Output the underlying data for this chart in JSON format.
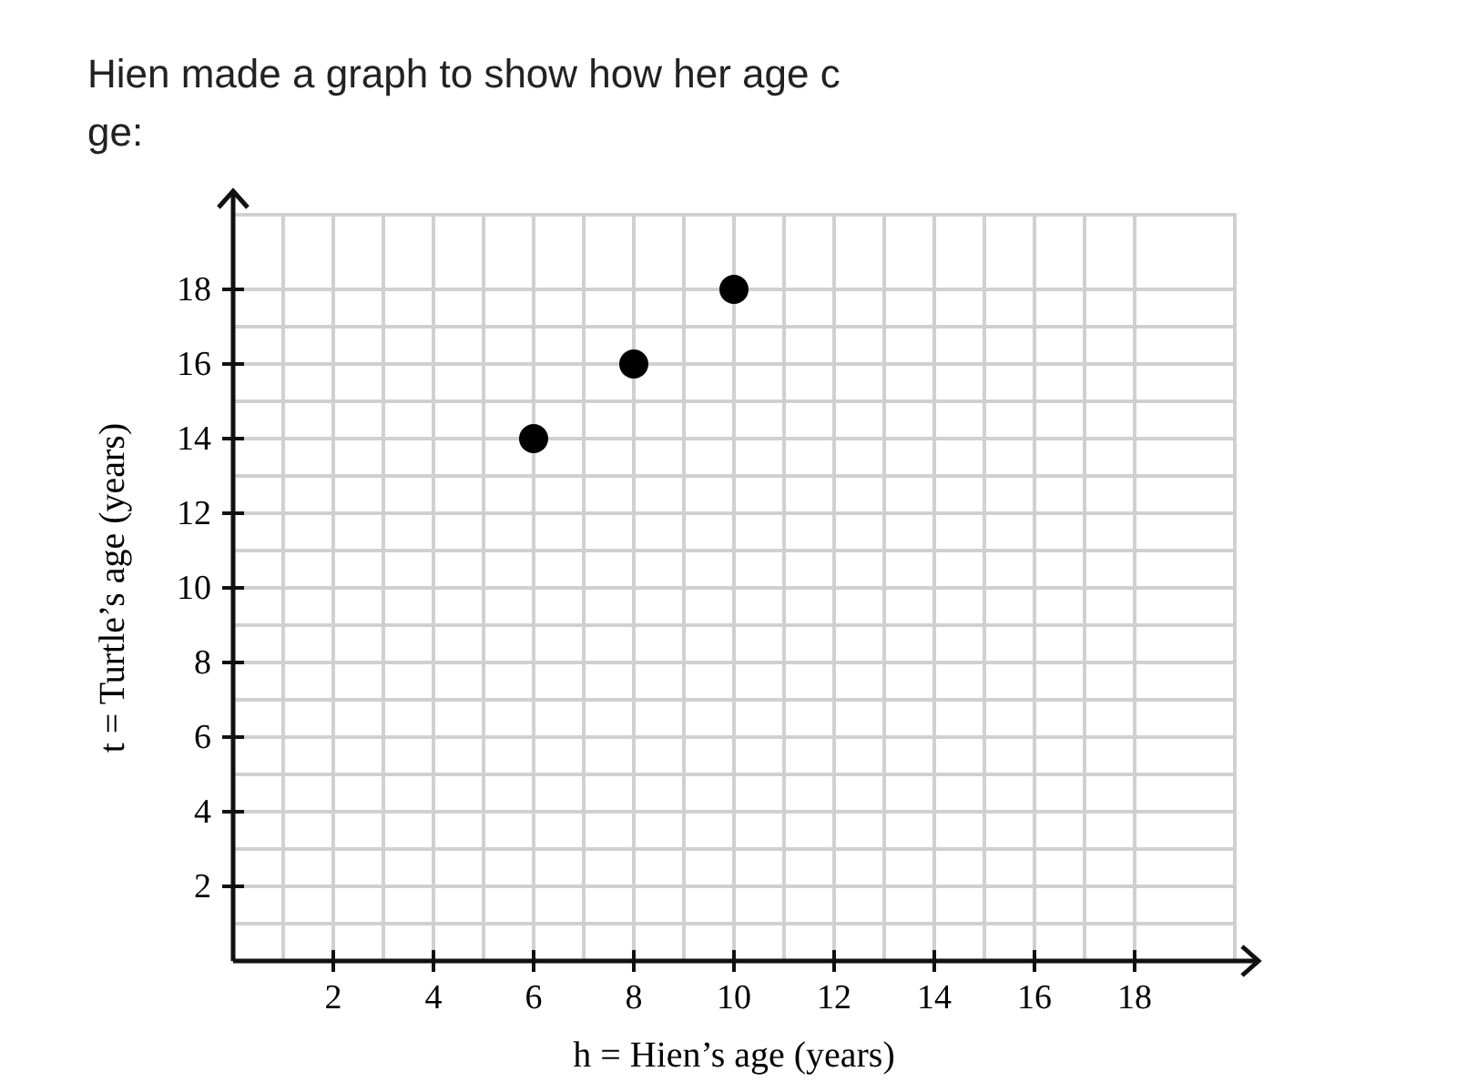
{
  "chart_data": {
    "type": "scatter",
    "title": "Hien made a graph to show how her age c",
    "annotations": [
      "ge:"
    ],
    "xlabel": "h = Hien’s age (years)",
    "ylabel": "t = Turtle’s age (years)",
    "x": [
      6,
      8,
      10
    ],
    "series": [
      {
        "color": "#000000",
        "values": [
          14,
          16,
          18
        ]
      }
    ],
    "xlim": [
      0,
      20
    ],
    "ylim": [
      0,
      20
    ],
    "xticks": [
      2,
      4,
      6,
      8,
      10,
      12,
      14,
      16,
      18
    ],
    "yticks": [
      2,
      4,
      6,
      8,
      10,
      12,
      14,
      16,
      18
    ],
    "grid": true,
    "marker": "circle"
  }
}
